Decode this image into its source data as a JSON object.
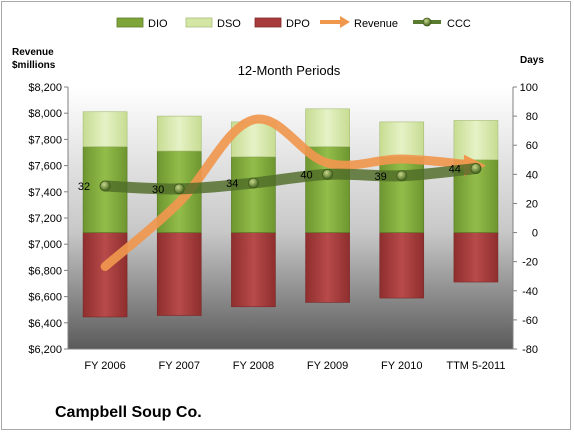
{
  "chart_data": {
    "type": "bar",
    "title": "12-Month Periods",
    "company": "Campbell Soup Co.",
    "left_axis_title_line1": "Revenue",
    "left_axis_title_line2": "$millions",
    "right_axis_title": "Days",
    "categories": [
      "FY 2006",
      "FY 2007",
      "FY 2008",
      "FY 2009",
      "FY 2010",
      "TTM 5-2011"
    ],
    "left_ticks": [
      "$6,200",
      "$6,400",
      "$6,600",
      "$6,800",
      "$7,000",
      "$7,200",
      "$7,400",
      "$7,600",
      "$7,800",
      "$8,000",
      "$8,200"
    ],
    "right_ticks": [
      "-80",
      "-60",
      "-40",
      "-20",
      "0",
      "20",
      "40",
      "60",
      "80",
      "100"
    ],
    "ylim_left": [
      6200,
      8200
    ],
    "ylim_right": [
      -80,
      100
    ],
    "grid": false,
    "legend_position": "top",
    "series": [
      {
        "name": "DIO",
        "axis": "right",
        "values": [
          59,
          56,
          52,
          59,
          52,
          50
        ],
        "color": "#7da53a"
      },
      {
        "name": "DSO",
        "axis": "right",
        "values": [
          24,
          24,
          24,
          26,
          24,
          27
        ],
        "color": "#d4e6a4"
      },
      {
        "name": "DPO",
        "axis": "right",
        "values": [
          -58,
          -57,
          -51,
          -48,
          -45,
          -34
        ],
        "color": "#a83c3c"
      },
      {
        "name": "Revenue",
        "axis": "left",
        "values": [
          6830,
          7320,
          7950,
          7620,
          7650,
          7600
        ],
        "color": "#f0974e"
      },
      {
        "name": "CCC",
        "axis": "right",
        "values": [
          32,
          30,
          34,
          40,
          39,
          44
        ],
        "color": "#5a7a30"
      }
    ],
    "ccc_labels": [
      "32",
      "30",
      "34",
      "40",
      "39",
      "44"
    ]
  }
}
